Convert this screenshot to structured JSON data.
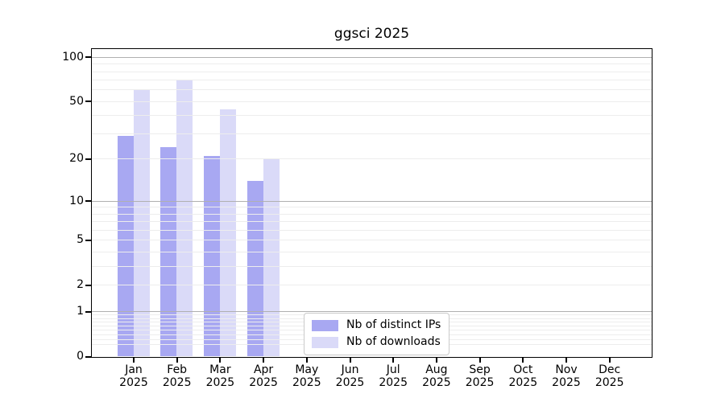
{
  "chart_data": {
    "type": "bar",
    "title": "ggsci 2025",
    "x_categories": [
      "Jan",
      "Feb",
      "Mar",
      "Apr",
      "May",
      "Jun",
      "Jul",
      "Aug",
      "Sep",
      "Oct",
      "Nov",
      "Dec"
    ],
    "x_year_label": "2025",
    "series": [
      {
        "name": "Nb of distinct IPs",
        "color": "#a8a8f2",
        "values": [
          29,
          24,
          21,
          14,
          null,
          null,
          null,
          null,
          null,
          null,
          null,
          null
        ]
      },
      {
        "name": "Nb of downloads",
        "color": "#dadaf8",
        "values": [
          60,
          70,
          44,
          20,
          null,
          null,
          null,
          null,
          null,
          null,
          null,
          null
        ]
      }
    ],
    "y_scale": "log1p",
    "y_ticks": [
      0,
      1,
      2,
      5,
      10,
      20,
      50,
      100
    ],
    "ylim": [
      0,
      113
    ],
    "grid": "horizontal major+minor",
    "legend_position": "lower center inside plot"
  }
}
